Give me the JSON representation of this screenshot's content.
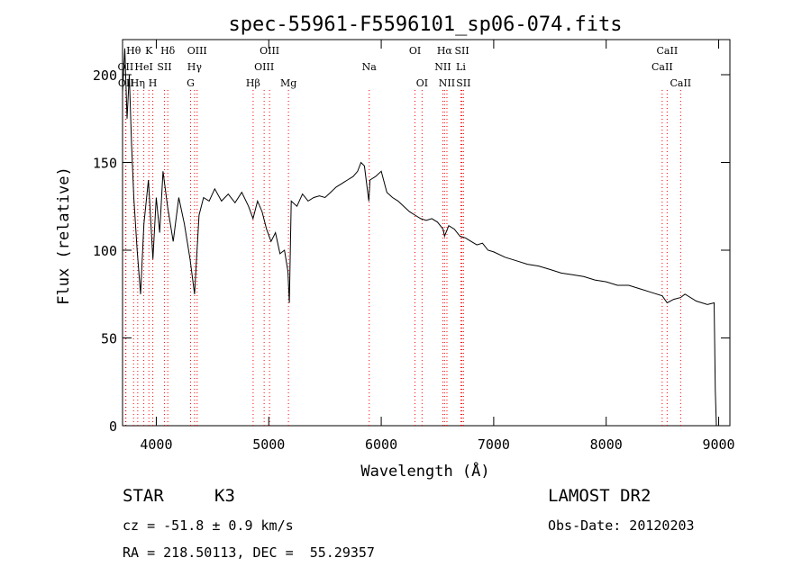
{
  "chart_data": {
    "type": "line",
    "title": "spec-55961-F5596101_sp06-074.fits",
    "xlabel": "Wavelength (Å)",
    "ylabel": "Flux (relative)",
    "xlim": [
      3700,
      9100
    ],
    "ylim": [
      0,
      220
    ],
    "xticks": [
      4000,
      5000,
      6000,
      7000,
      8000,
      9000
    ],
    "yticks": [
      0,
      50,
      100,
      150,
      200
    ],
    "grid": false,
    "line_color": "#000000",
    "marker_color": "#ff0000",
    "series": [
      {
        "x": [
          3700,
          3720,
          3740,
          3760,
          3780,
          3800,
          3830,
          3860,
          3890,
          3930,
          3970,
          4000,
          4030,
          4060,
          4100,
          4150,
          4200,
          4250,
          4300,
          4340,
          4380,
          4420,
          4470,
          4520,
          4580,
          4640,
          4700,
          4760,
          4820,
          4860,
          4900,
          4940,
          4980,
          5020,
          5060,
          5100,
          5140,
          5170,
          5183,
          5200,
          5250,
          5300,
          5350,
          5400,
          5450,
          5500,
          5550,
          5600,
          5650,
          5700,
          5750,
          5790,
          5820,
          5850,
          5890,
          5900,
          5950,
          6000,
          6050,
          6100,
          6150,
          6200,
          6250,
          6300,
          6350,
          6400,
          6450,
          6500,
          6550,
          6563,
          6600,
          6650,
          6700,
          6750,
          6800,
          6850,
          6900,
          6950,
          7000,
          7100,
          7200,
          7300,
          7400,
          7500,
          7600,
          7700,
          7800,
          7900,
          8000,
          8100,
          8200,
          8300,
          8400,
          8498,
          8542,
          8600,
          8662,
          8700,
          8800,
          8900,
          8960,
          8970,
          8980
        ],
        "y": [
          190,
          215,
          175,
          200,
          160,
          130,
          100,
          75,
          115,
          140,
          95,
          130,
          110,
          145,
          125,
          105,
          130,
          115,
          95,
          75,
          120,
          130,
          128,
          135,
          128,
          132,
          127,
          133,
          125,
          118,
          128,
          122,
          112,
          105,
          110,
          98,
          100,
          88,
          70,
          128,
          125,
          132,
          128,
          130,
          131,
          130,
          133,
          136,
          138,
          140,
          142,
          145,
          150,
          148,
          128,
          140,
          142,
          145,
          133,
          130,
          128,
          125,
          122,
          120,
          118,
          117,
          118,
          116,
          112,
          108,
          114,
          112,
          108,
          107,
          105,
          103,
          104,
          100,
          99,
          96,
          94,
          92,
          91,
          89,
          87,
          86,
          85,
          83,
          82,
          80,
          80,
          78,
          76,
          74,
          70,
          72,
          73,
          75,
          71,
          69,
          70,
          20,
          0
        ]
      }
    ],
    "line_markers": [
      {
        "label": "Hθ",
        "x": 3798,
        "row": 0
      },
      {
        "label": "K",
        "x": 3934,
        "row": 0
      },
      {
        "label": "Hδ",
        "x": 4102,
        "row": 0
      },
      {
        "label": "OIII",
        "x": 4363,
        "row": 0
      },
      {
        "label": "OIII",
        "x": 5007,
        "row": 0
      },
      {
        "label": "OI",
        "x": 6300,
        "row": 0
      },
      {
        "label": "Hα",
        "x": 6563,
        "row": 0
      },
      {
        "label": "SII",
        "x": 6717,
        "row": 0
      },
      {
        "label": "CaII",
        "x": 8542,
        "row": 0
      },
      {
        "label": "OII",
        "x": 3727,
        "row": 1
      },
      {
        "label": "HeI",
        "x": 3889,
        "row": 1
      },
      {
        "label": "SII",
        "x": 4072,
        "row": 1
      },
      {
        "label": "Hγ",
        "x": 4340,
        "row": 1
      },
      {
        "label": "OIII",
        "x": 4959,
        "row": 1
      },
      {
        "label": "Na",
        "x": 5893,
        "row": 1
      },
      {
        "label": "NII",
        "x": 6548,
        "row": 1
      },
      {
        "label": "Li",
        "x": 6708,
        "row": 1
      },
      {
        "label": "CaII",
        "x": 8498,
        "row": 1
      },
      {
        "label": "OII",
        "x": 3730,
        "row": 2
      },
      {
        "label": "Hη",
        "x": 3835,
        "row": 2
      },
      {
        "label": "H",
        "x": 3969,
        "row": 2
      },
      {
        "label": "G",
        "x": 4305,
        "row": 2
      },
      {
        "label": "Hβ",
        "x": 4861,
        "row": 2
      },
      {
        "label": "Mg",
        "x": 5175,
        "row": 2
      },
      {
        "label": "OI",
        "x": 6363,
        "row": 2
      },
      {
        "label": "NII",
        "x": 6584,
        "row": 2
      },
      {
        "label": "SII",
        "x": 6731,
        "row": 2
      },
      {
        "label": "CaII",
        "x": 8662,
        "row": 2
      }
    ]
  },
  "info": {
    "object_class": "STAR",
    "subclass": "K3",
    "survey": "LAMOST DR2",
    "redshift": "cz = -51.8 ± 0.9 km/s",
    "obs_date": "Obs-Date: 20120203",
    "coords": "RA = 218.50113, DEC =  55.29357"
  }
}
